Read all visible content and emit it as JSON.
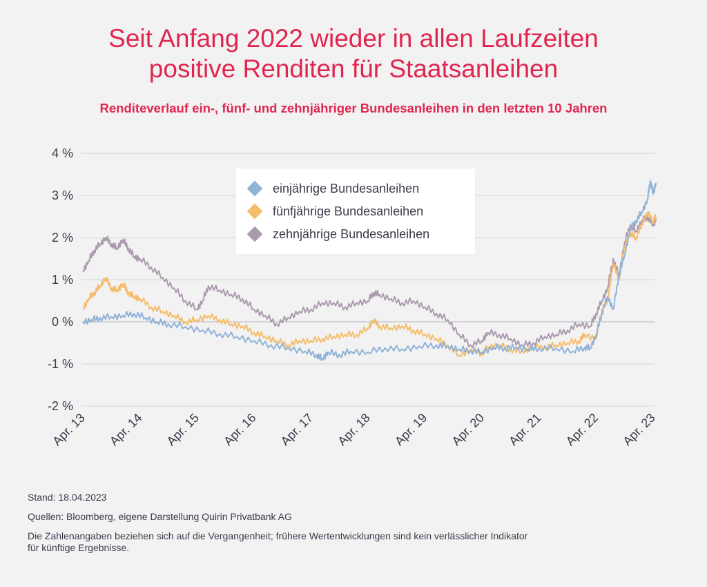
{
  "header": {
    "title_line1": "Seit Anfang 2022 wieder in allen Laufzeiten",
    "title_line2": "positive Renditen für Staatsanleihen",
    "subtitle": "Renditeverlauf ein-, fünf- und zehnjähriger Bundesanleihen in den letzten 10 Jahren"
  },
  "chart_data": {
    "type": "line",
    "title": "Seit Anfang 2022 wieder in allen Laufzeiten positive Renditen für Staatsanleihen",
    "subtitle": "Renditeverlauf ein-, fünf- und zehnjähriger Bundesanleihen in den letzten 10 Jahren",
    "xlabel": "",
    "ylabel": "",
    "x_unit": "years since Apr. 13",
    "x_ticks": [
      "Apr. 13",
      "Apr. 14",
      "Apr. 15",
      "Apr. 16",
      "Apr. 17",
      "Apr. 18",
      "Apr. 19",
      "Apr. 20",
      "Apr. 21",
      "Apr. 22",
      "Apr. 23"
    ],
    "y_ticks": [
      "4 %",
      "3 %",
      "2 %",
      "1 %",
      "0 %",
      "-1 %",
      "-2 %"
    ],
    "ylim": [
      -2,
      4
    ],
    "grid": "horizontal",
    "legend_position": "top-center",
    "series": [
      {
        "name": "einjährige Bundesanleihen",
        "color": "#8fb2d6",
        "points": [
          [
            0,
            0.0
          ],
          [
            0.15,
            0.05
          ],
          [
            0.3,
            0.1
          ],
          [
            0.5,
            0.12
          ],
          [
            0.7,
            0.15
          ],
          [
            0.9,
            0.2
          ],
          [
            1.1,
            0.1
          ],
          [
            1.3,
            0.0
          ],
          [
            1.5,
            -0.05
          ],
          [
            1.8,
            -0.12
          ],
          [
            2.1,
            -0.2
          ],
          [
            2.4,
            -0.28
          ],
          [
            2.7,
            -0.35
          ],
          [
            3.0,
            -0.45
          ],
          [
            3.3,
            -0.55
          ],
          [
            3.6,
            -0.62
          ],
          [
            3.9,
            -0.7
          ],
          [
            4.1,
            -0.78
          ],
          [
            4.2,
            -0.88
          ],
          [
            4.3,
            -0.72
          ],
          [
            4.5,
            -0.78
          ],
          [
            4.7,
            -0.7
          ],
          [
            5.0,
            -0.72
          ],
          [
            5.3,
            -0.62
          ],
          [
            5.6,
            -0.65
          ],
          [
            5.9,
            -0.58
          ],
          [
            6.2,
            -0.55
          ],
          [
            6.4,
            -0.58
          ],
          [
            6.6,
            -0.65
          ],
          [
            6.8,
            -0.68
          ],
          [
            7.0,
            -0.72
          ],
          [
            7.2,
            -0.6
          ],
          [
            7.4,
            -0.62
          ],
          [
            7.6,
            -0.6
          ],
          [
            7.8,
            -0.65
          ],
          [
            8.0,
            -0.62
          ],
          [
            8.3,
            -0.63
          ],
          [
            8.6,
            -0.7
          ],
          [
            8.8,
            -0.6
          ],
          [
            8.9,
            -0.62
          ],
          [
            9.0,
            -0.3
          ],
          [
            9.1,
            0.2
          ],
          [
            9.2,
            0.6
          ],
          [
            9.3,
            0.3
          ],
          [
            9.4,
            1.1
          ],
          [
            9.5,
            1.6
          ],
          [
            9.6,
            2.2
          ],
          [
            9.7,
            2.4
          ],
          [
            9.8,
            2.6
          ],
          [
            9.9,
            2.9
          ],
          [
            9.95,
            3.35
          ],
          [
            10.0,
            3.05
          ],
          [
            10.05,
            3.3
          ]
        ]
      },
      {
        "name": "fünfjährige Bundesanleihen",
        "color": "#f4bd6b",
        "points": [
          [
            0,
            0.3
          ],
          [
            0.1,
            0.55
          ],
          [
            0.2,
            0.7
          ],
          [
            0.3,
            0.85
          ],
          [
            0.4,
            1.05
          ],
          [
            0.5,
            0.8
          ],
          [
            0.6,
            0.75
          ],
          [
            0.7,
            0.9
          ],
          [
            0.8,
            0.7
          ],
          [
            0.9,
            0.6
          ],
          [
            1.0,
            0.55
          ],
          [
            1.2,
            0.35
          ],
          [
            1.4,
            0.25
          ],
          [
            1.6,
            0.15
          ],
          [
            1.8,
            0.0
          ],
          [
            2.0,
            0.05
          ],
          [
            2.2,
            0.15
          ],
          [
            2.4,
            0.05
          ],
          [
            2.6,
            -0.05
          ],
          [
            2.8,
            -0.1
          ],
          [
            3.0,
            -0.25
          ],
          [
            3.2,
            -0.35
          ],
          [
            3.4,
            -0.45
          ],
          [
            3.6,
            -0.55
          ],
          [
            3.8,
            -0.45
          ],
          [
            4.0,
            -0.45
          ],
          [
            4.2,
            -0.4
          ],
          [
            4.4,
            -0.35
          ],
          [
            4.6,
            -0.3
          ],
          [
            4.8,
            -0.3
          ],
          [
            5.0,
            -0.15
          ],
          [
            5.1,
            0.05
          ],
          [
            5.2,
            -0.1
          ],
          [
            5.4,
            -0.15
          ],
          [
            5.6,
            -0.1
          ],
          [
            5.8,
            -0.2
          ],
          [
            6.0,
            -0.3
          ],
          [
            6.2,
            -0.4
          ],
          [
            6.4,
            -0.55
          ],
          [
            6.6,
            -0.8
          ],
          [
            6.8,
            -0.65
          ],
          [
            7.0,
            -0.75
          ],
          [
            7.1,
            -0.6
          ],
          [
            7.3,
            -0.55
          ],
          [
            7.5,
            -0.65
          ],
          [
            7.7,
            -0.7
          ],
          [
            7.9,
            -0.6
          ],
          [
            8.1,
            -0.6
          ],
          [
            8.3,
            -0.55
          ],
          [
            8.5,
            -0.5
          ],
          [
            8.7,
            -0.45
          ],
          [
            8.8,
            -0.3
          ],
          [
            9.0,
            -0.4
          ],
          [
            9.1,
            0.3
          ],
          [
            9.2,
            0.5
          ],
          [
            9.3,
            1.4
          ],
          [
            9.4,
            1.0
          ],
          [
            9.5,
            1.8
          ],
          [
            9.6,
            2.1
          ],
          [
            9.7,
            2.0
          ],
          [
            9.8,
            2.3
          ],
          [
            9.9,
            2.6
          ],
          [
            10.0,
            2.4
          ],
          [
            10.05,
            2.5
          ]
        ]
      },
      {
        "name": "zehnjährige Bundesanleihen",
        "color": "#ab9aae",
        "points": [
          [
            0,
            1.2
          ],
          [
            0.1,
            1.45
          ],
          [
            0.2,
            1.7
          ],
          [
            0.3,
            1.85
          ],
          [
            0.4,
            2.0
          ],
          [
            0.5,
            1.85
          ],
          [
            0.6,
            1.75
          ],
          [
            0.7,
            1.95
          ],
          [
            0.8,
            1.75
          ],
          [
            0.9,
            1.55
          ],
          [
            1.0,
            1.5
          ],
          [
            1.2,
            1.3
          ],
          [
            1.4,
            1.05
          ],
          [
            1.6,
            0.8
          ],
          [
            1.8,
            0.5
          ],
          [
            2.0,
            0.3
          ],
          [
            2.1,
            0.5
          ],
          [
            2.2,
            0.85
          ],
          [
            2.4,
            0.75
          ],
          [
            2.6,
            0.65
          ],
          [
            2.8,
            0.55
          ],
          [
            3.0,
            0.3
          ],
          [
            3.2,
            0.15
          ],
          [
            3.4,
            -0.05
          ],
          [
            3.6,
            0.1
          ],
          [
            3.8,
            0.25
          ],
          [
            4.0,
            0.3
          ],
          [
            4.2,
            0.45
          ],
          [
            4.4,
            0.45
          ],
          [
            4.6,
            0.35
          ],
          [
            4.8,
            0.45
          ],
          [
            5.0,
            0.5
          ],
          [
            5.1,
            0.7
          ],
          [
            5.2,
            0.65
          ],
          [
            5.4,
            0.55
          ],
          [
            5.6,
            0.45
          ],
          [
            5.8,
            0.5
          ],
          [
            6.0,
            0.35
          ],
          [
            6.2,
            0.2
          ],
          [
            6.4,
            0.05
          ],
          [
            6.6,
            -0.3
          ],
          [
            6.8,
            -0.55
          ],
          [
            7.0,
            -0.45
          ],
          [
            7.1,
            -0.25
          ],
          [
            7.3,
            -0.3
          ],
          [
            7.5,
            -0.4
          ],
          [
            7.7,
            -0.55
          ],
          [
            7.9,
            -0.5
          ],
          [
            8.1,
            -0.35
          ],
          [
            8.3,
            -0.3
          ],
          [
            8.5,
            -0.2
          ],
          [
            8.7,
            -0.05
          ],
          [
            8.9,
            -0.1
          ],
          [
            9.0,
            0.2
          ],
          [
            9.1,
            0.5
          ],
          [
            9.2,
            0.8
          ],
          [
            9.3,
            1.5
          ],
          [
            9.4,
            1.1
          ],
          [
            9.5,
            1.9
          ],
          [
            9.6,
            2.3
          ],
          [
            9.7,
            2.15
          ],
          [
            9.8,
            2.4
          ],
          [
            9.9,
            2.5
          ],
          [
            10.0,
            2.3
          ],
          [
            10.05,
            2.45
          ]
        ]
      }
    ]
  },
  "footer": {
    "stand": "Stand: 18.04.2023",
    "quellen": "Quellen: Bloomberg, eigene Darstellung Quirin Privatbank AG",
    "disclaimer_line1": "Die Zahlenangaben beziehen sich auf die Vergangenheit; frühere Wertentwicklungen sind kein verlässlicher Indikator",
    "disclaimer_line2": "für künftige Ergebnisse."
  }
}
